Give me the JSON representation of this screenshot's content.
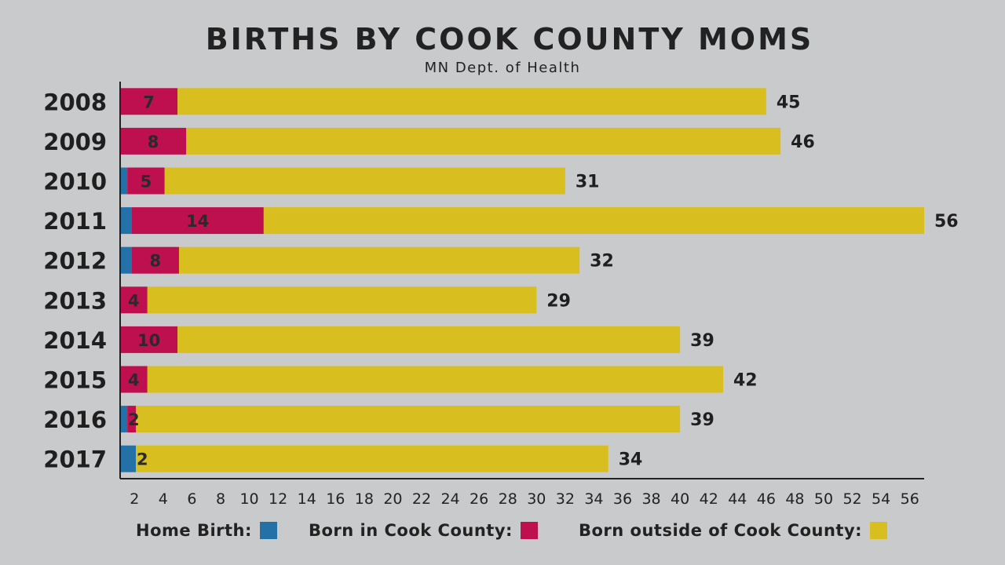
{
  "chart_data": {
    "type": "bar",
    "orientation": "horizontal",
    "stacked": true,
    "title": "BIRTHS BY COOK COUNTY MOMS",
    "subtitle": "MN Dept. of Health",
    "categories": [
      "2008",
      "2009",
      "2010",
      "2011",
      "2012",
      "2013",
      "2014",
      "2015",
      "2016",
      "2017"
    ],
    "series": [
      {
        "name": "Home Birth",
        "color": "#2471a8",
        "values": [
          0,
          0,
          0.5,
          0.8,
          0.8,
          0,
          0,
          0,
          0.5,
          1.1
        ]
      },
      {
        "name": "Born in Cook County",
        "color": "#be0f4f",
        "values": [
          4,
          4.6,
          2.6,
          9.2,
          3.3,
          1.9,
          4,
          1.9,
          0.6,
          0
        ]
      },
      {
        "name": "Born outside of Cook County",
        "color": "#d8be1e",
        "values": [
          41,
          41.4,
          27.9,
          46,
          27.9,
          27.1,
          35,
          40.1,
          37.9,
          32.9
        ]
      }
    ],
    "segment_labels": [
      "7",
      "8",
      "5",
      "14",
      "8",
      "4",
      "10",
      "4",
      "2",
      "2"
    ],
    "total_labels": [
      "45",
      "46",
      "31",
      "56",
      "32",
      "29",
      "39",
      "42",
      "39",
      "34"
    ],
    "xlim": [
      0,
      56
    ],
    "xticks": [
      2,
      4,
      6,
      8,
      10,
      12,
      14,
      16,
      18,
      20,
      22,
      24,
      26,
      28,
      30,
      32,
      34,
      36,
      38,
      40,
      42,
      44,
      46,
      48,
      50,
      52,
      54,
      56
    ],
    "grid": false,
    "legend_position": "bottom"
  },
  "legend": {
    "home_label": "Home Birth:",
    "cook_label": "Born in Cook County:",
    "outside_label": "Born outside of Cook County:"
  }
}
